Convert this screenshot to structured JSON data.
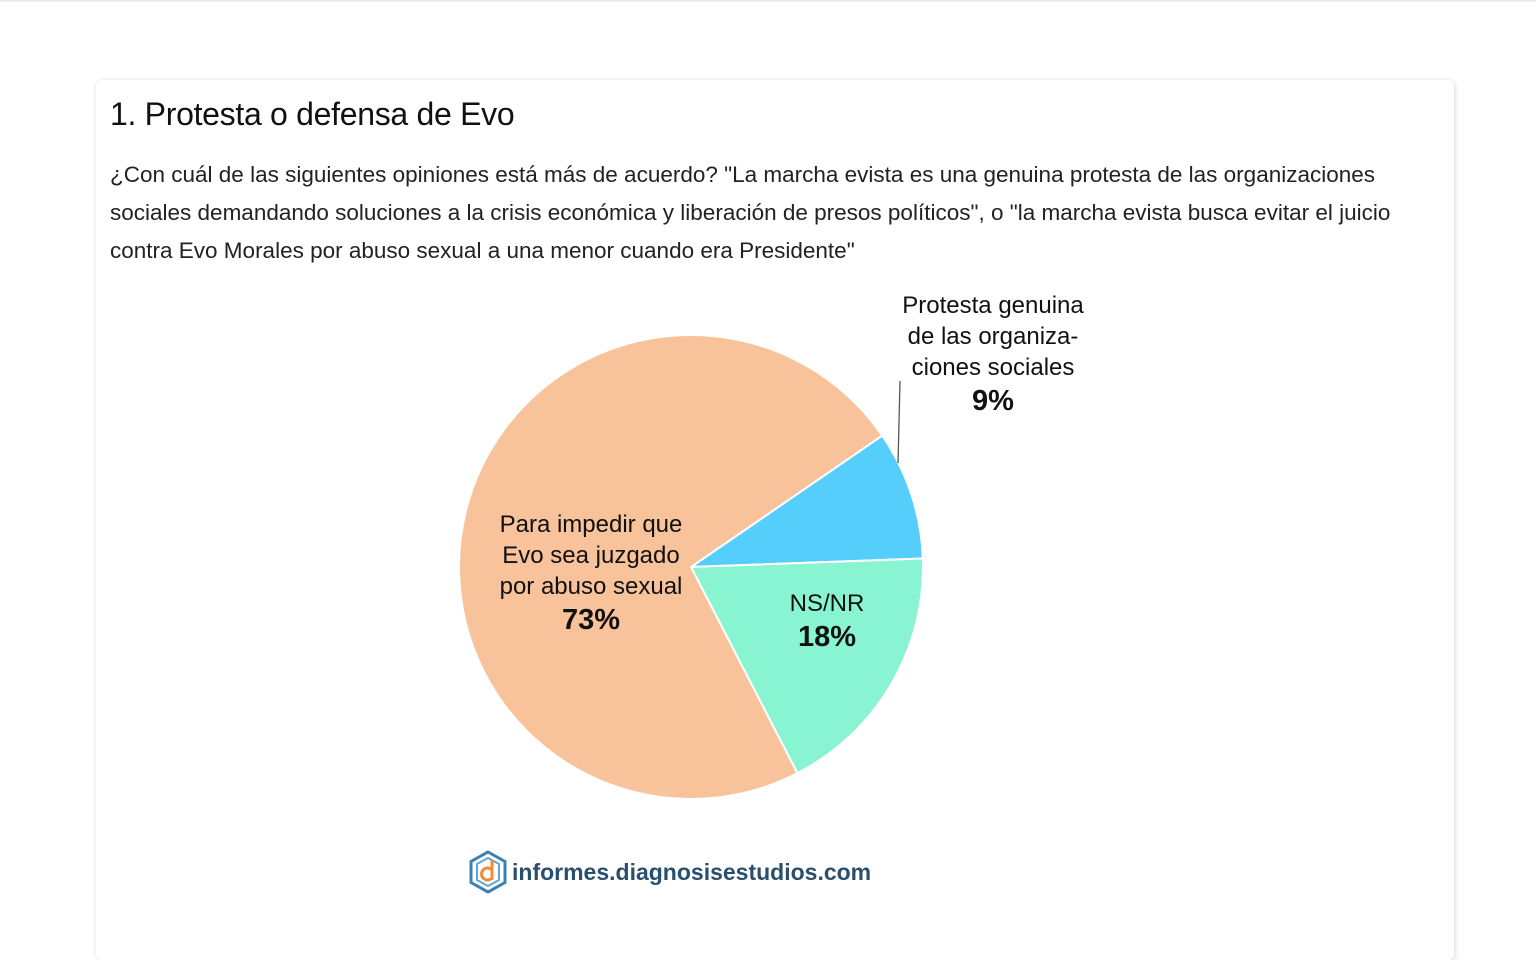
{
  "title": "1. Protesta o defensa de Evo",
  "question": "¿Con cuál de las siguientes opiniones está más de acuerdo? \"La marcha evista es una genuina protesta de las organizaciones sociales demandando soluciones a la crisis económica y liberación de presos políticos\", o \"la marcha evista busca evitar el juicio contra Evo Morales por abuso sexual a una menor cuando era Presidente\"",
  "brand": "informes.diagnosisestudios.com",
  "chart_data": {
    "type": "pie",
    "slices": [
      {
        "label_lines": [
          "Protesta genuina",
          "de las organiza-",
          "ciones sociales"
        ],
        "value": 9,
        "value_label": "9%",
        "color": "#56cefc"
      },
      {
        "label_lines": [
          "NS/NR"
        ],
        "value": 18,
        "value_label": "18%",
        "color": "#88f4d2"
      },
      {
        "label_lines": [
          "Para impedir que",
          "Evo sea juzgado",
          "por abuso sexual"
        ],
        "value": 73,
        "value_label": "73%",
        "color": "#f8c29a"
      }
    ]
  }
}
